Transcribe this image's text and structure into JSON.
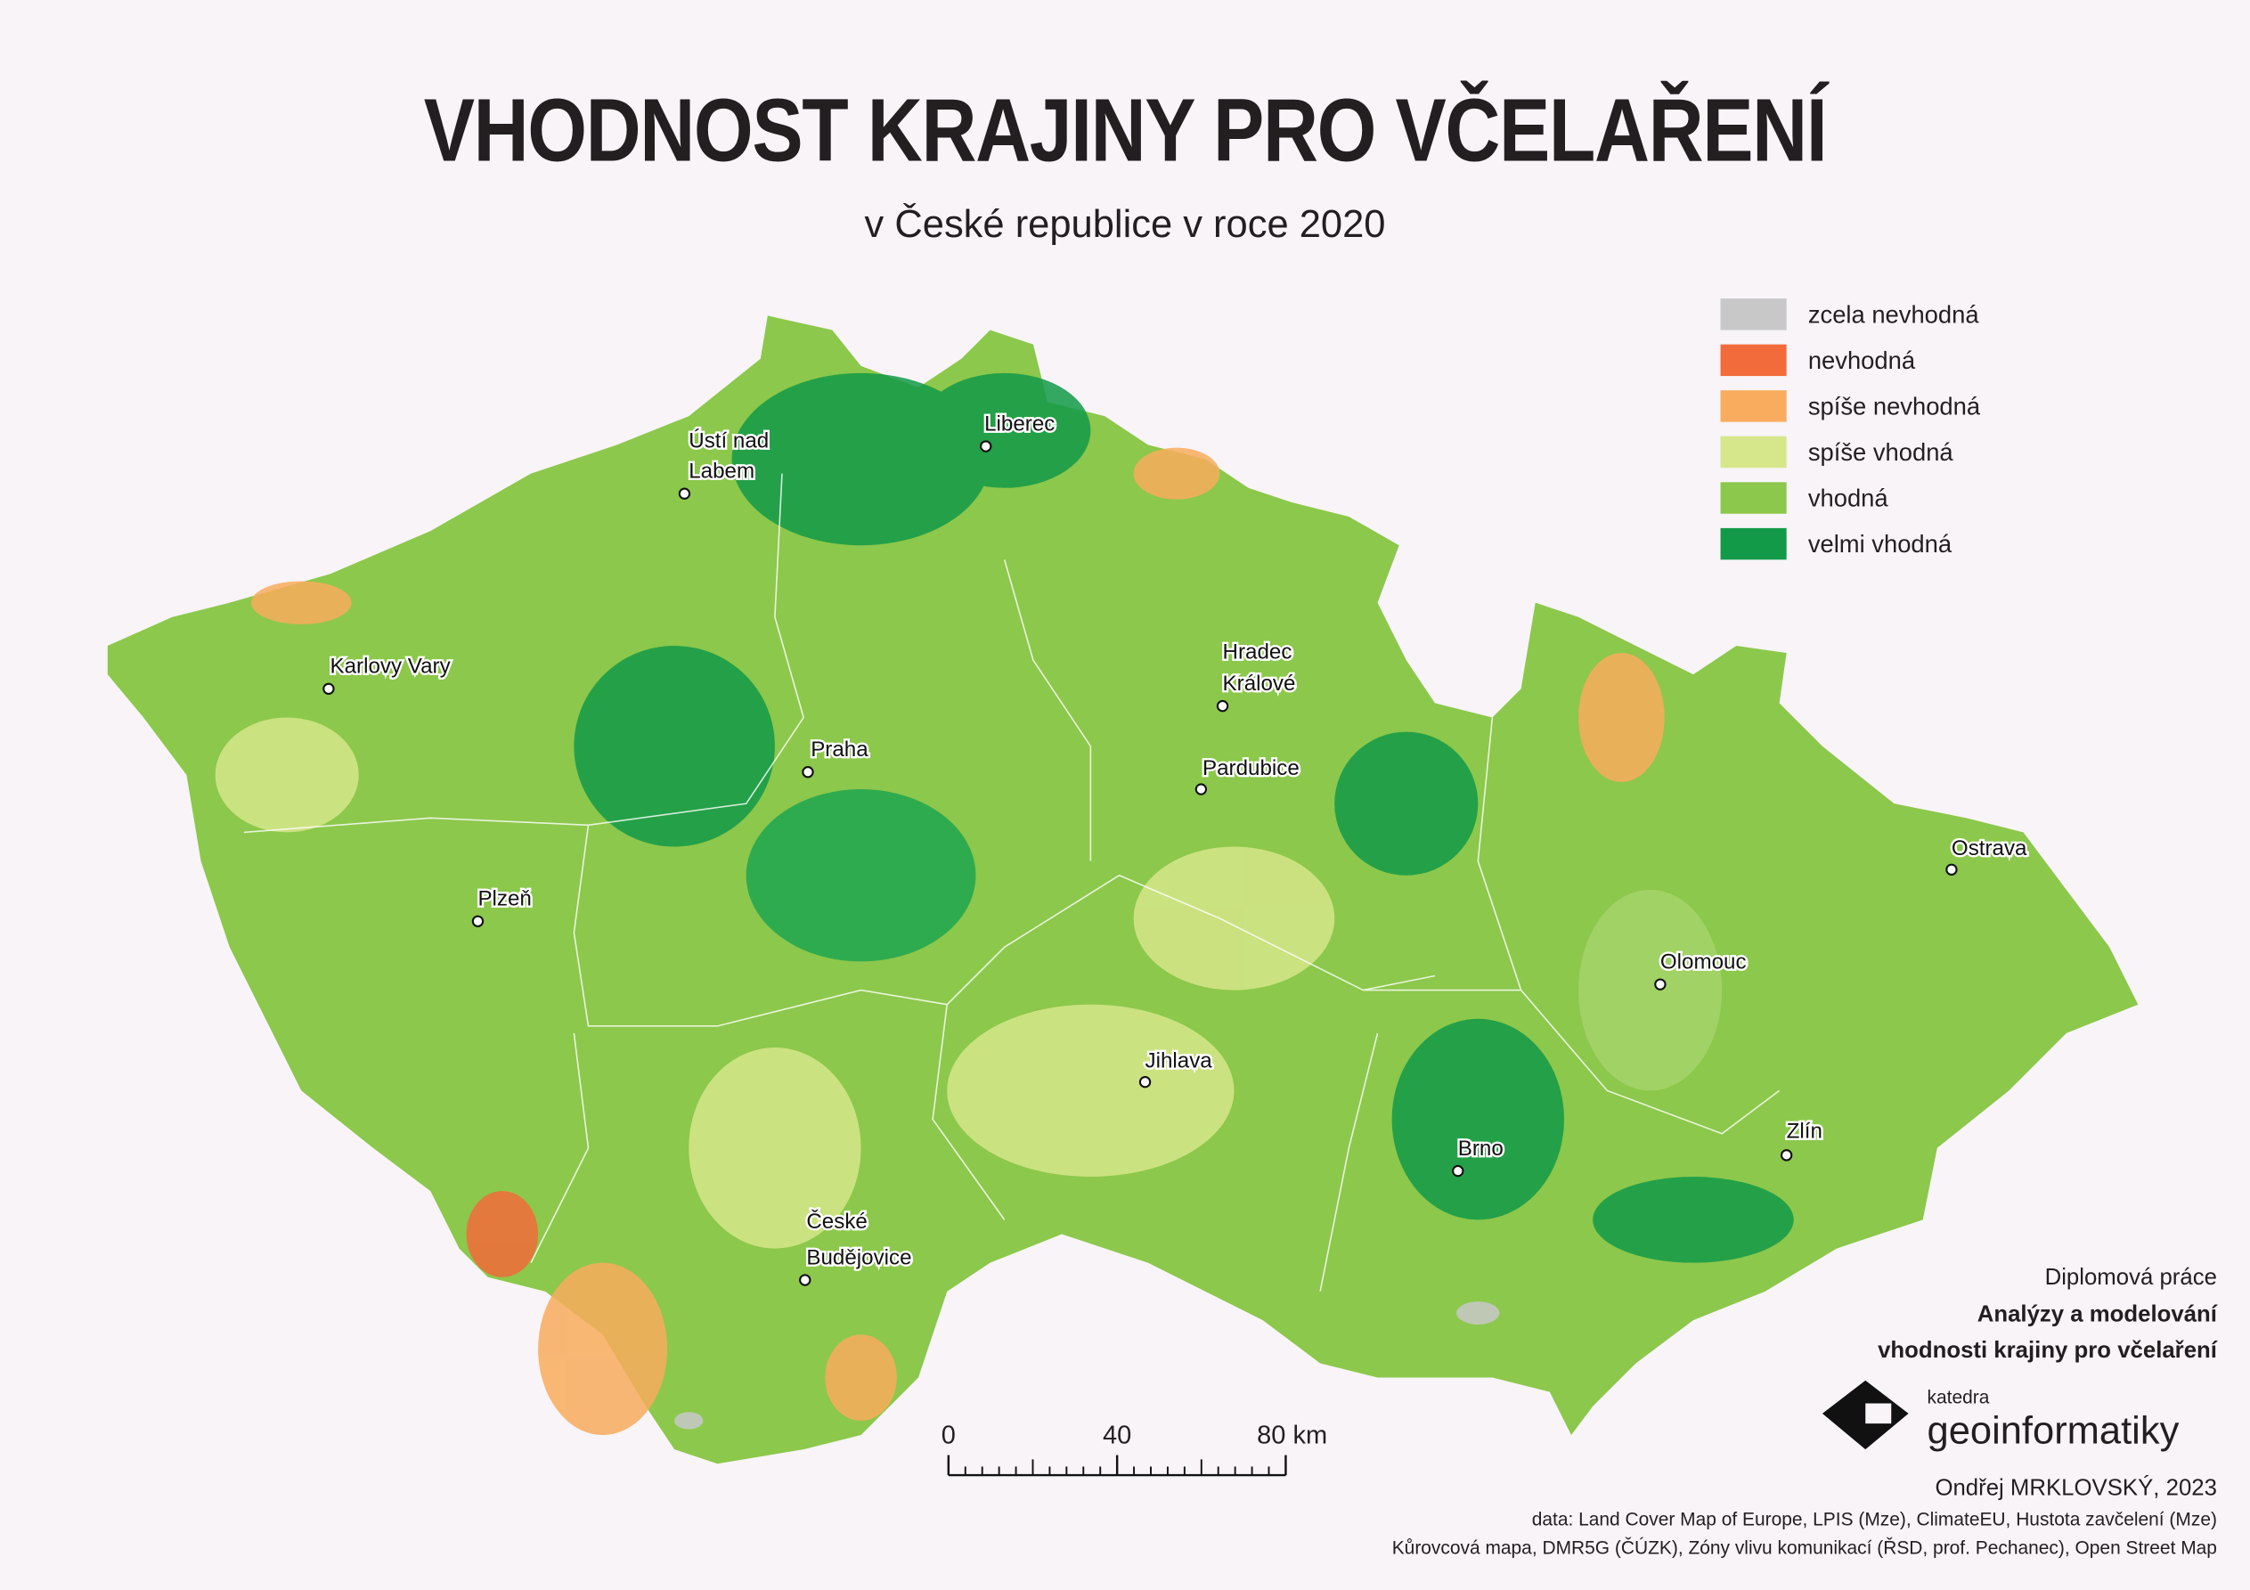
{
  "header": {
    "title": "VHODNOST KRAJINY PRO VČELAŘENÍ",
    "subtitle": "v České republice v roce 2020"
  },
  "legend": [
    {
      "label": "zcela nevhodná",
      "color": "#c8c8c8"
    },
    {
      "label": "nevhodná",
      "color": "#f26b3a"
    },
    {
      "label": "spíše nevhodná",
      "color": "#f9ac5d"
    },
    {
      "label": "spíše vhodná",
      "color": "#d6e68a"
    },
    {
      "label": "vhodná",
      "color": "#8cc84b"
    },
    {
      "label": "velmi vhodná",
      "color": "#129a48"
    }
  ],
  "cities": [
    "Ústí nad",
    "Labem",
    "Liberec",
    "Karlovy Vary",
    "Hradec",
    "Králové",
    "Praha",
    "Pardubice",
    "Plzeň",
    "Ostrava",
    "Olomouc",
    "Jihlava",
    "Brno",
    "Zlín",
    "České",
    "Budějovice"
  ],
  "scale_bar": {
    "ticks": [
      0,
      40,
      80
    ],
    "unit": "km"
  },
  "thesis": {
    "type": "Diplomová práce",
    "title_line1": "Analýzy a modelování",
    "title_line2": "vhodnosti krajiny pro včelaření"
  },
  "logo": {
    "small": "katedra",
    "large": "geoinformatiky"
  },
  "author": "Ondřej MRKLOVSKÝ, 2023",
  "sources": [
    "data: Land Cover Map of Europe, LPIS (Mze), ClimateEU, Hustota zavčelení (Mze)",
    "Kůrovcová mapa, DMR5G (ČÚZK), Zóny vlivu komunikací (ŘSD, prof. Pechanec), Open Street Map"
  ]
}
